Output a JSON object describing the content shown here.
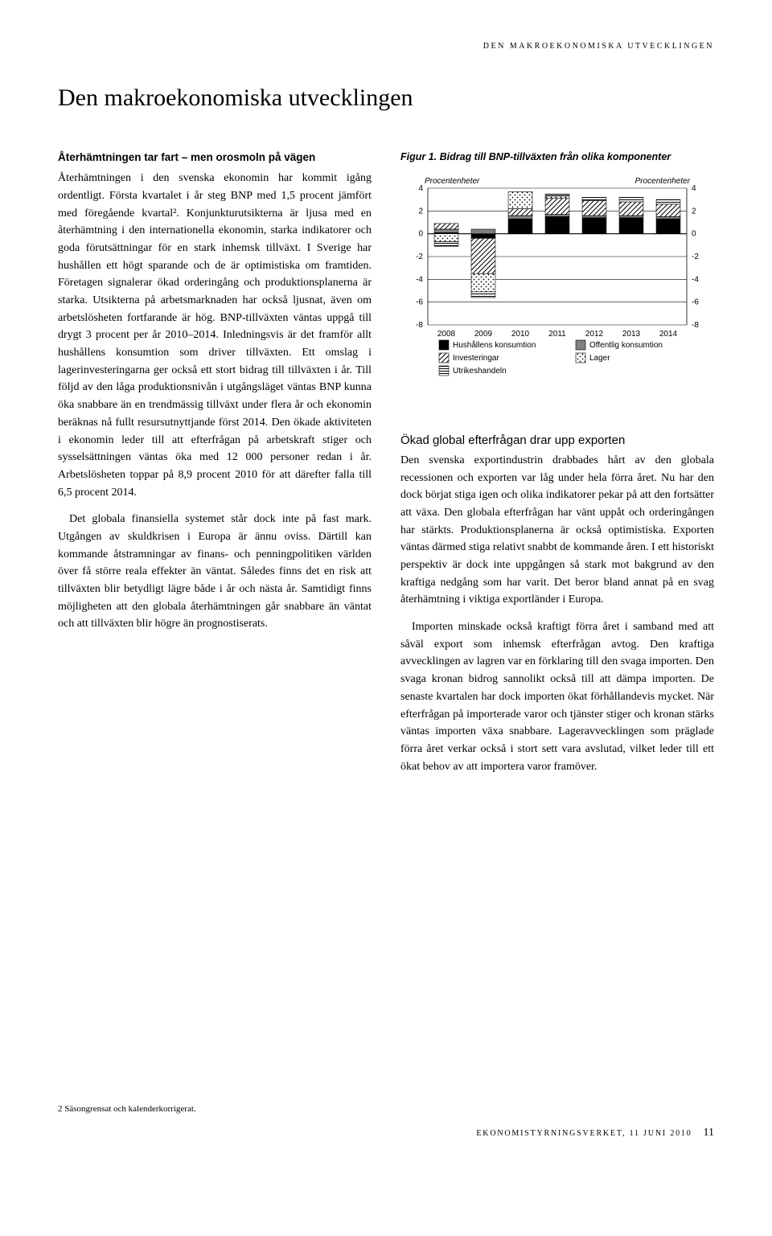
{
  "running_head": "DEN MAKROEKONOMISKA UTVECKLINGEN",
  "title": "Den makroekonomiska utvecklingen",
  "left": {
    "subhead": "Återhämtningen tar fart – men orosmoln på vägen",
    "p1": "Återhämtningen i den svenska ekonomin har kommit igång ordentligt. Första kvartalet i år steg BNP med 1,5 procent jämfört med föregående kvartal². Konjunkturutsikterna är ljusa med en återhämtning i den internationella ekonomin, starka indikatorer och goda förutsättningar för en stark inhemsk tillväxt. I Sverige har hushållen ett högt sparande och de är optimistiska om framtiden. Företagen signalerar ökad orderingång och produktionsplanerna är starka. Utsikterna på arbetsmarknaden har också ljusnat, även om arbetslösheten fortfarande är hög. BNP-tillväxten väntas uppgå till drygt 3 procent per år 2010–2014. Inledningsvis är det framför allt hushållens konsumtion som driver tillväxten. Ett omslag i lagerinvesteringarna ger också ett stort bidrag till tillväxten i år. Till följd av den låga produktionsnivån i utgångsläget väntas BNP kunna öka snabbare än en trendmässig tillväxt under flera år och ekonomin beräknas nå fullt resursutnyttjande först 2014. Den ökade aktiviteten i ekonomin leder till att efterfrågan på arbetskraft stiger och sysselsättningen väntas öka med 12 000 personer redan i år. Arbetslösheten toppar på 8,9 procent 2010 för att därefter falla till 6,5 procent 2014.",
    "p2": "Det globala finansiella systemet står dock inte på fast mark. Utgången av skuldkrisen i Europa är ännu oviss. Därtill kan kommande åtstramningar av finans- och penningpolitiken världen över få större reala effekter än väntat. Således finns det en risk att tillväxten blir betydligt lägre både i år och nästa år. Samtidigt finns möjligheten att den globala återhämtningen går snabbare än väntat och att tillväxten blir högre än prognostiserats."
  },
  "figure": {
    "caption": "Figur 1. Bidrag till BNP-tillväxten från olika komponenter",
    "chart": {
      "type": "stacked-bar",
      "left_axis_title": "Procentenheter",
      "right_axis_title": "Procentenheter",
      "ylim": [
        -8,
        4
      ],
      "ytick_step": 2,
      "categories": [
        "2008",
        "2009",
        "2010",
        "2011",
        "2012",
        "2013",
        "2014"
      ],
      "series": [
        {
          "name": "Hushållens konsumtion",
          "key": "hushall",
          "pattern": "solid",
          "fill": "#000000"
        },
        {
          "name": "Offentlig konsumtion",
          "key": "offentlig",
          "pattern": "solid",
          "fill": "#808080"
        },
        {
          "name": "Investeringar",
          "key": "invest",
          "pattern": "diag",
          "fill": "#ffffff"
        },
        {
          "name": "Lager",
          "key": "lager",
          "pattern": "dots",
          "fill": "#ffffff"
        },
        {
          "name": "Utrikeshandeln",
          "key": "utrikes",
          "pattern": "horiz",
          "fill": "#ffffff"
        }
      ],
      "data": {
        "2008": {
          "hushall": 0.1,
          "offentlig": 0.3,
          "invest": 0.5,
          "lager": -0.7,
          "utrikes": -0.4
        },
        "2009": {
          "hushall": -0.4,
          "offentlig": 0.4,
          "invest": -3.1,
          "lager": -1.6,
          "utrikes": -0.5
        },
        "2010": {
          "hushall": 1.3,
          "offentlig": 0.3,
          "invest": 0.6,
          "lager": 1.5,
          "utrikes": 0.0
        },
        "2011": {
          "hushall": 1.5,
          "offentlig": 0.2,
          "invest": 1.4,
          "lager": 0.2,
          "utrikes": 0.2
        },
        "2012": {
          "hushall": 1.4,
          "offentlig": 0.2,
          "invest": 1.3,
          "lager": 0.0,
          "utrikes": 0.3
        },
        "2013": {
          "hushall": 1.4,
          "offentlig": 0.2,
          "invest": 1.2,
          "lager": 0.0,
          "utrikes": 0.4
        },
        "2014": {
          "hushall": 1.3,
          "offentlig": 0.2,
          "invest": 1.1,
          "lager": 0.0,
          "utrikes": 0.4
        }
      },
      "grid_color": "#000000",
      "background": "#ffffff",
      "bar_width": 0.65,
      "font_family": "Arial",
      "axis_fontsize": 10,
      "legend_fontsize": 10
    }
  },
  "right": {
    "subtitle": "Ökad global efterfrågan drar upp exporten",
    "p1": "Den svenska exportindustrin drabbades hårt av den globala recessionen och exporten var låg under hela förra året. Nu har den dock börjat stiga igen och olika indikatorer pekar på att den fortsätter att växa. Den globala efterfrågan har vänt uppåt och orderingången har stärkts. Produktionsplanerna är också optimistiska. Exporten väntas därmed stiga relativt snabbt de kommande åren. I ett historiskt perspektiv är dock inte uppgången så stark mot bakgrund av den kraftiga nedgång som har varit. Det beror bland annat på en svag återhämtning i viktiga exportländer i Europa.",
    "p2": "Importen minskade också kraftigt förra året i samband med att såväl export som inhemsk efterfrågan avtog. Den kraftiga avvecklingen av lagren var en förklaring till den svaga importen. Den svaga kronan bidrog sannolikt också till att dämpa importen. De senaste kvartalen har dock importen ökat förhållandevis mycket. När efterfrågan på importerade varor och tjänster stiger och kronan stärks väntas importen växa snabbare. Lageravvecklingen som präglade förra året verkar också i stort sett vara avslutad, vilket leder till ett ökat behov av att importera varor framöver."
  },
  "footnote": "2  Säsongrensat och kalenderkorrigerat.",
  "footer_text": "EKONOMISTYRNINGSVERKET, 11 JUNI 2010",
  "page_number": "11"
}
